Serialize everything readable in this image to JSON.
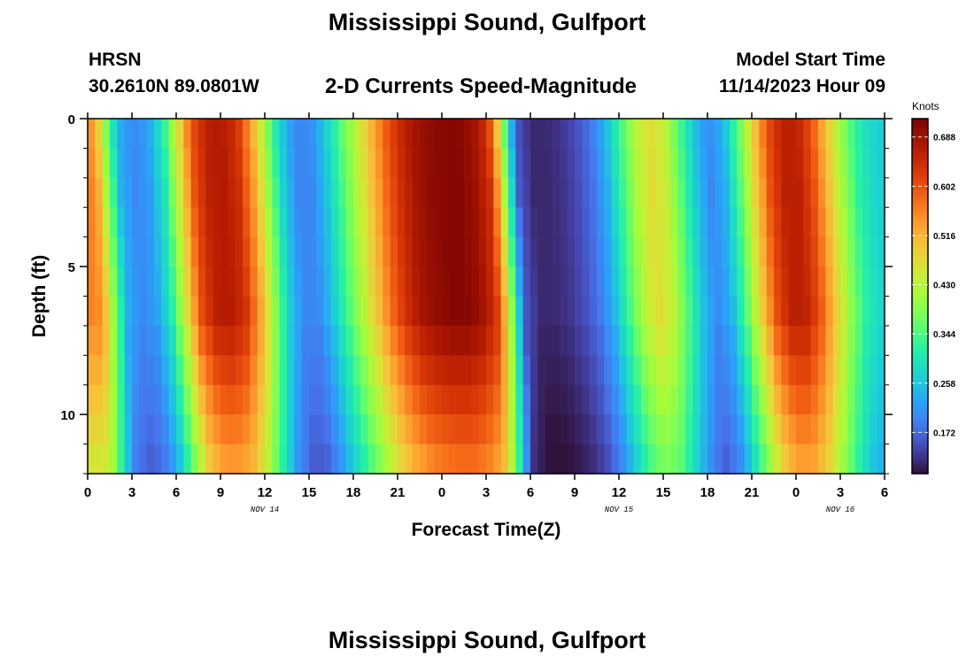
{
  "header": {
    "title": "Mississippi Sound, Gulfport",
    "station": "HRSN",
    "coords": "30.2610N  89.0801W",
    "product": "2-D Currents Speed-Magnitude",
    "model_label": "Model Start Time",
    "model_time": "11/14/2023 Hour 09"
  },
  "footer": {
    "title": "Mississippi Sound, Gulfport"
  },
  "chart_data": {
    "type": "heatmap",
    "title": "2-D Currents Speed-Magnitude",
    "xlabel": "Forecast Time(Z)",
    "ylabel": "Depth (ft)",
    "x_hours_start": 0,
    "x_hours_end": 54,
    "x_ticks": [
      {
        "h": 0,
        "label": "0"
      },
      {
        "h": 3,
        "label": "3"
      },
      {
        "h": 6,
        "label": "6"
      },
      {
        "h": 9,
        "label": "9"
      },
      {
        "h": 12,
        "label": "12"
      },
      {
        "h": 15,
        "label": "15"
      },
      {
        "h": 18,
        "label": "18"
      },
      {
        "h": 21,
        "label": "21"
      },
      {
        "h": 24,
        "label": "0"
      },
      {
        "h": 27,
        "label": "3"
      },
      {
        "h": 30,
        "label": "6"
      },
      {
        "h": 33,
        "label": "9"
      },
      {
        "h": 36,
        "label": "12"
      },
      {
        "h": 39,
        "label": "15"
      },
      {
        "h": 42,
        "label": "18"
      },
      {
        "h": 45,
        "label": "21"
      },
      {
        "h": 48,
        "label": "0"
      },
      {
        "h": 51,
        "label": "3"
      },
      {
        "h": 54,
        "label": "6"
      }
    ],
    "date_labels": [
      {
        "h": 12,
        "label": "NOV 14"
      },
      {
        "h": 36,
        "label": "NOV 15"
      },
      {
        "h": 51,
        "label": "NOV 16"
      }
    ],
    "y_range": [
      0,
      12
    ],
    "y_ticks": [
      0,
      5,
      10
    ],
    "y_minor_tick_step": 1,
    "depth_layers": 12,
    "speed_profile": [
      {
        "h": 0,
        "v": 0.56
      },
      {
        "h": 0.5,
        "v": 0.52
      },
      {
        "h": 1,
        "v": 0.42
      },
      {
        "h": 1.5,
        "v": 0.33
      },
      {
        "h": 2,
        "v": 0.24
      },
      {
        "h": 3,
        "v": 0.2
      },
      {
        "h": 4,
        "v": 0.22
      },
      {
        "h": 5,
        "v": 0.3
      },
      {
        "h": 6,
        "v": 0.45
      },
      {
        "h": 7,
        "v": 0.6
      },
      {
        "h": 8,
        "v": 0.66
      },
      {
        "h": 9,
        "v": 0.67
      },
      {
        "h": 10,
        "v": 0.64
      },
      {
        "h": 11,
        "v": 0.54
      },
      {
        "h": 12,
        "v": 0.4
      },
      {
        "h": 13,
        "v": 0.27
      },
      {
        "h": 14,
        "v": 0.2
      },
      {
        "h": 15,
        "v": 0.2
      },
      {
        "h": 16,
        "v": 0.26
      },
      {
        "h": 17,
        "v": 0.34
      },
      {
        "h": 18,
        "v": 0.42
      },
      {
        "h": 19,
        "v": 0.5
      },
      {
        "h": 20,
        "v": 0.58
      },
      {
        "h": 21,
        "v": 0.64
      },
      {
        "h": 22,
        "v": 0.68
      },
      {
        "h": 23,
        "v": 0.7
      },
      {
        "h": 24,
        "v": 0.71
      },
      {
        "h": 25,
        "v": 0.71
      },
      {
        "h": 26,
        "v": 0.69
      },
      {
        "h": 27,
        "v": 0.64
      },
      {
        "h": 27.5,
        "v": 0.55
      },
      {
        "h": 28,
        "v": 0.42
      },
      {
        "h": 28.5,
        "v": 0.28
      },
      {
        "h": 29,
        "v": 0.16
      },
      {
        "h": 30,
        "v": 0.12
      },
      {
        "h": 31,
        "v": 0.12
      },
      {
        "h": 32,
        "v": 0.13
      },
      {
        "h": 33,
        "v": 0.15
      },
      {
        "h": 34,
        "v": 0.18
      },
      {
        "h": 35,
        "v": 0.24
      },
      {
        "h": 36,
        "v": 0.33
      },
      {
        "h": 37,
        "v": 0.42
      },
      {
        "h": 38,
        "v": 0.47
      },
      {
        "h": 39,
        "v": 0.44
      },
      {
        "h": 40,
        "v": 0.35
      },
      {
        "h": 41,
        "v": 0.26
      },
      {
        "h": 42,
        "v": 0.2
      },
      {
        "h": 43,
        "v": 0.24
      },
      {
        "h": 44,
        "v": 0.35
      },
      {
        "h": 45,
        "v": 0.48
      },
      {
        "h": 46,
        "v": 0.6
      },
      {
        "h": 47,
        "v": 0.66
      },
      {
        "h": 48,
        "v": 0.66
      },
      {
        "h": 49,
        "v": 0.6
      },
      {
        "h": 50,
        "v": 0.5
      },
      {
        "h": 51,
        "v": 0.4
      },
      {
        "h": 52,
        "v": 0.32
      },
      {
        "h": 53,
        "v": 0.28
      },
      {
        "h": 54,
        "v": 0.26
      }
    ],
    "colorbar": {
      "unit": "Knots",
      "min": 0.1,
      "max": 0.72,
      "ticks": [
        0.688,
        0.602,
        0.516,
        0.43,
        0.344,
        0.258,
        0.172
      ],
      "tick_labels": [
        "0.688",
        "0.602",
        "0.516",
        "0.430",
        "0.344",
        "0.258",
        "0.172"
      ],
      "colormap": "turbo"
    },
    "colors": {
      "low": "#30123b",
      "mid_low": "#2b8ef2",
      "mid": "#a4fc3c",
      "mid_high": "#fb7e21",
      "high": "#7a0403"
    }
  }
}
